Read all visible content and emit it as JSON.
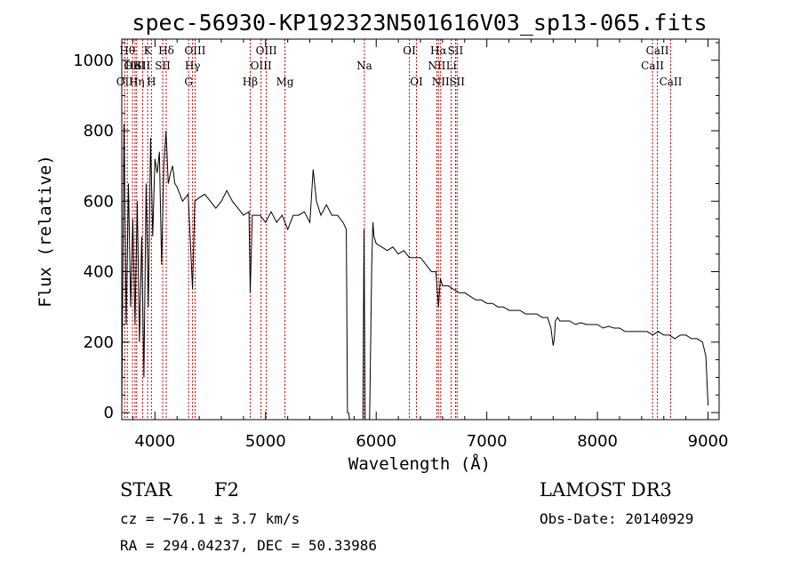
{
  "chart_data": {
    "type": "line",
    "title": "spec-56930-KP192323N501616V03_sp13-065.fits",
    "xlabel": "Wavelength (Å)",
    "ylabel": "Flux (relative)",
    "xlim": [
      3700,
      9100
    ],
    "ylim": [
      -20,
      1060
    ],
    "xticks": [
      4000,
      5000,
      6000,
      7000,
      8000,
      9000
    ],
    "yticks": [
      0,
      200,
      400,
      600,
      800,
      1000
    ],
    "grid": false,
    "legend": "none",
    "series": [
      {
        "x": [
          3700,
          3720,
          3740,
          3760,
          3780,
          3800,
          3820,
          3840,
          3860,
          3880,
          3900,
          3920,
          3940,
          3960,
          3980,
          4000,
          4020,
          4040,
          4060,
          4080,
          4100,
          4120,
          4140,
          4160,
          4180,
          4200,
          4250,
          4300,
          4340,
          4360,
          4400,
          4450,
          4500,
          4550,
          4600,
          4650,
          4700,
          4750,
          4800,
          4850,
          4861,
          4880,
          4900,
          4950,
          5000,
          5050,
          5100,
          5150,
          5200,
          5250,
          5300,
          5350,
          5400,
          5430,
          5460,
          5480,
          5500,
          5550,
          5600,
          5650,
          5700,
          5730,
          5740,
          5750,
          5760,
          5800,
          5850,
          5880,
          5890,
          5900,
          5920,
          5940,
          5960,
          5970,
          5980,
          6000,
          6050,
          6100,
          6150,
          6200,
          6250,
          6300,
          6350,
          6400,
          6450,
          6500,
          6540,
          6563,
          6580,
          6600,
          6650,
          6700,
          6750,
          6800,
          6850,
          6900,
          6950,
          7000,
          7050,
          7100,
          7150,
          7200,
          7250,
          7300,
          7350,
          7400,
          7450,
          7500,
          7550,
          7580,
          7600,
          7610,
          7620,
          7640,
          7660,
          7700,
          7750,
          7800,
          7850,
          7900,
          7950,
          8000,
          8050,
          8100,
          8150,
          8200,
          8250,
          8300,
          8350,
          8400,
          8450,
          8500,
          8550,
          8600,
          8650,
          8700,
          8750,
          8800,
          8850,
          8900,
          8950,
          8980,
          9000
        ],
        "y": [
          0,
          820,
          250,
          650,
          300,
          550,
          250,
          600,
          200,
          500,
          100,
          650,
          300,
          780,
          500,
          720,
          680,
          740,
          420,
          700,
          800,
          650,
          680,
          700,
          650,
          640,
          600,
          620,
          350,
          600,
          610,
          620,
          600,
          580,
          600,
          630,
          600,
          580,
          560,
          570,
          340,
          560,
          560,
          560,
          540,
          570,
          540,
          560,
          520,
          560,
          560,
          570,
          540,
          690,
          600,
          580,
          560,
          590,
          560,
          560,
          540,
          520,
          0,
          0,
          -20,
          -20,
          -20,
          -20,
          520,
          -20,
          -20,
          -20,
          420,
          540,
          500,
          480,
          470,
          460,
          470,
          450,
          460,
          440,
          440,
          440,
          420,
          400,
          400,
          300,
          380,
          360,
          360,
          350,
          340,
          340,
          330,
          320,
          320,
          310,
          310,
          300,
          300,
          290,
          290,
          290,
          280,
          280,
          280,
          270,
          270,
          240,
          190,
          210,
          260,
          270,
          260,
          260,
          260,
          250,
          255,
          250,
          250,
          250,
          240,
          245,
          240,
          240,
          230,
          230,
          230,
          230,
          230,
          220,
          230,
          220,
          220,
          210,
          220,
          220,
          210,
          210,
          200,
          160,
          20
        ]
      }
    ],
    "line_markers": [
      {
        "x": 3727,
        "label": "OII",
        "row": 3
      },
      {
        "x": 3750,
        "label": "Hθ",
        "row": 1
      },
      {
        "x": 3797,
        "label": "OII",
        "row": 2
      },
      {
        "x": 3820,
        "label": "HeI",
        "row": 2
      },
      {
        "x": 3835,
        "label": "Hη",
        "row": 3
      },
      {
        "x": 3889,
        "label": "SII",
        "row": 2
      },
      {
        "x": 3934,
        "label": "K",
        "row": 1
      },
      {
        "x": 3968,
        "label": "H",
        "row": 3
      },
      {
        "x": 4070,
        "label": "SII",
        "row": 2
      },
      {
        "x": 4102,
        "label": "Hδ",
        "row": 1
      },
      {
        "x": 4304,
        "label": "G",
        "row": 3
      },
      {
        "x": 4340,
        "label": "Hγ",
        "row": 2
      },
      {
        "x": 4363,
        "label": "OIII",
        "row": 1
      },
      {
        "x": 4861,
        "label": "Hβ",
        "row": 3
      },
      {
        "x": 4959,
        "label": "OIII",
        "row": 2
      },
      {
        "x": 5007,
        "label": "OIII",
        "row": 1
      },
      {
        "x": 5175,
        "label": "Mg",
        "row": 3
      },
      {
        "x": 5893,
        "label": "Na",
        "row": 2
      },
      {
        "x": 6300,
        "label": "OI",
        "row": 1
      },
      {
        "x": 6364,
        "label": "OI",
        "row": 3
      },
      {
        "x": 6548,
        "label": "NII",
        "row": 2
      },
      {
        "x": 6563,
        "label": "Hα",
        "row": 1
      },
      {
        "x": 6583,
        "label": "NII",
        "row": 3
      },
      {
        "x": 6678,
        "label": "Li",
        "row": 2
      },
      {
        "x": 6717,
        "label": "SII",
        "row": 1
      },
      {
        "x": 6731,
        "label": "SII",
        "row": 3
      },
      {
        "x": 8498,
        "label": "CaII",
        "row": 2
      },
      {
        "x": 8542,
        "label": "CaII",
        "row": 1
      },
      {
        "x": 8662,
        "label": "CaII",
        "row": 3
      }
    ]
  },
  "footer": {
    "class_label": "STAR",
    "subclass": "F2",
    "survey": "LAMOST DR3",
    "cz": "cz = −76.1 ± 3.7 km/s",
    "obs_date": "Obs-Date: 20140929",
    "coords": "RA = 294.04237, DEC =  50.33986"
  }
}
